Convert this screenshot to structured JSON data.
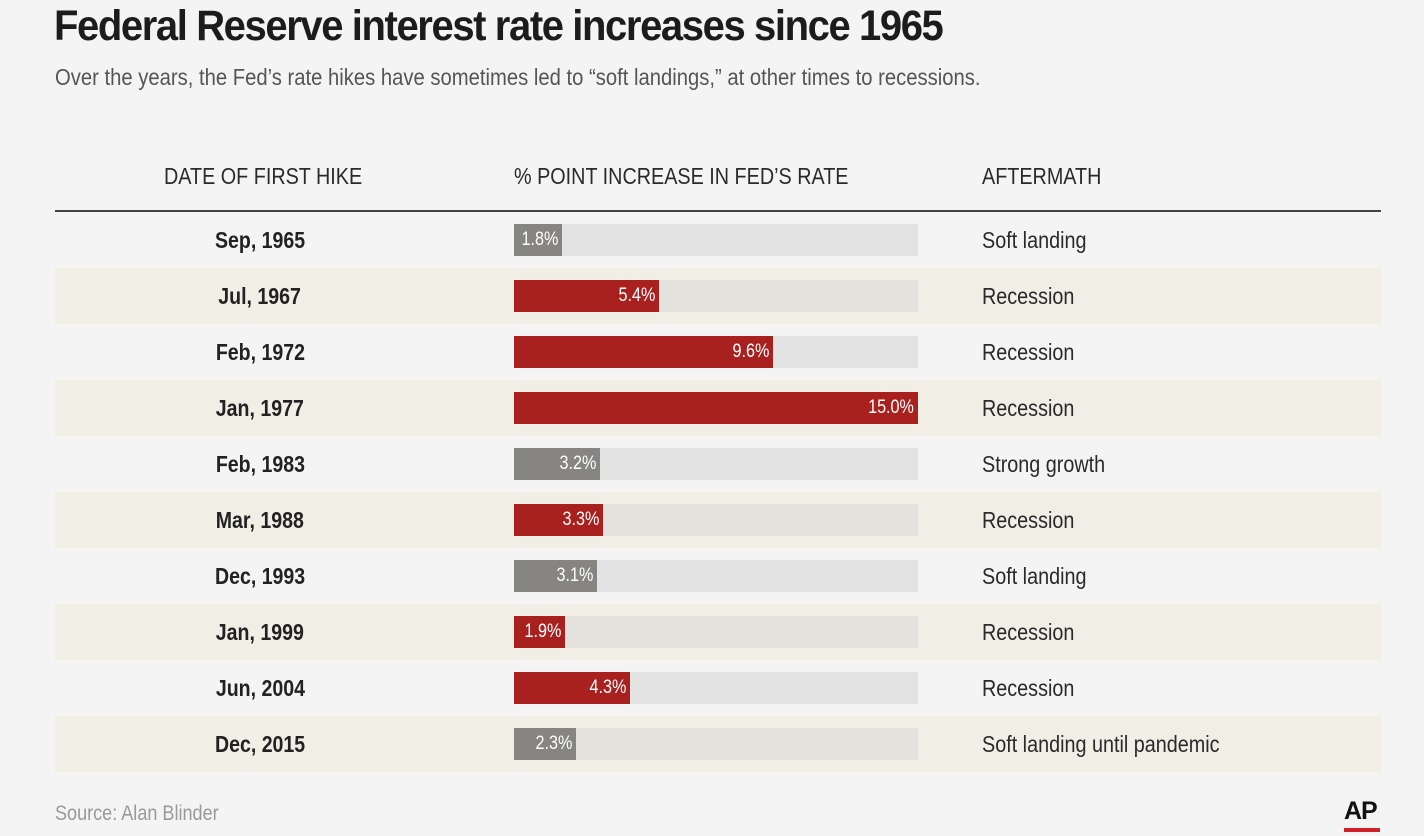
{
  "header": {
    "title": "Federal Reserve interest rate increases since 1965",
    "subtitle": "Over the years, the Fed’s rate hikes have sometimes led to “soft landings,” at other times to recessions."
  },
  "columns": {
    "date": "DATE OF FIRST HIKE",
    "increase": "% POINT INCREASE IN FED’S RATE",
    "aftermath": "AFTERMATH"
  },
  "footer": {
    "source": "Source: Alan Blinder",
    "logo": "AP"
  },
  "colors": {
    "recession": "#a8211f",
    "other": "#868581",
    "track": "#e3e3e3",
    "alt_row": "#f1eee6",
    "logo_accent": "#d0212a"
  },
  "chart_data": {
    "type": "bar",
    "title": "Federal Reserve interest rate increases since 1965",
    "subtitle": "Over the years, the Fed’s rate hikes have sometimes led to “soft landings,” at other times to recessions.",
    "ylabel": "% POINT INCREASE IN FED’S RATE",
    "xlim": [
      0,
      15
    ],
    "rows": [
      {
        "date": "Sep, 1965",
        "value": 1.8,
        "label": "1.8%",
        "aftermath": "Soft landing"
      },
      {
        "date": "Jul, 1967",
        "value": 5.4,
        "label": "5.4%",
        "aftermath": "Recession"
      },
      {
        "date": "Feb, 1972",
        "value": 9.6,
        "label": "9.6%",
        "aftermath": "Recession"
      },
      {
        "date": "Jan, 1977",
        "value": 15.0,
        "label": "15.0%",
        "aftermath": "Recession"
      },
      {
        "date": "Feb, 1983",
        "value": 3.2,
        "label": "3.2%",
        "aftermath": "Strong growth"
      },
      {
        "date": "Mar, 1988",
        "value": 3.3,
        "label": "3.3%",
        "aftermath": "Recession"
      },
      {
        "date": "Dec, 1993",
        "value": 3.1,
        "label": "3.1%",
        "aftermath": "Soft landing"
      },
      {
        "date": "Jan, 1999",
        "value": 1.9,
        "label": "1.9%",
        "aftermath": "Recession"
      },
      {
        "date": "Jun, 2004",
        "value": 4.3,
        "label": "4.3%",
        "aftermath": "Recession"
      },
      {
        "date": "Dec, 2015",
        "value": 2.3,
        "label": "2.3%",
        "aftermath": "Soft landing until pandemic"
      }
    ]
  }
}
